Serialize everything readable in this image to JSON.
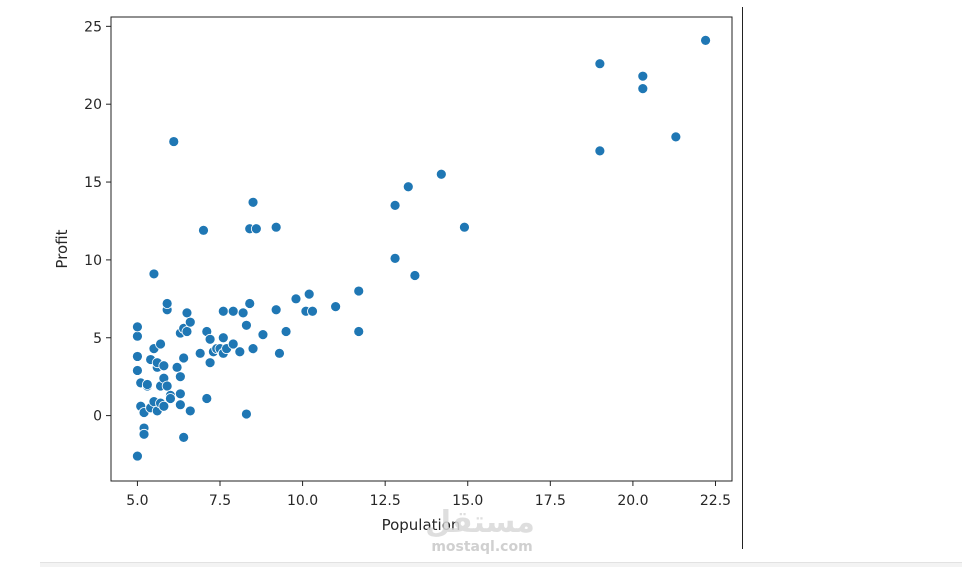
{
  "chart_data": {
    "type": "scatter",
    "title": "",
    "xlabel": "Population",
    "ylabel": "Profit",
    "xlim": [
      4.2,
      23.0
    ],
    "ylim": [
      -4.2,
      25.6
    ],
    "xticks": [
      5.0,
      7.5,
      10.0,
      12.5,
      15.0,
      17.5,
      20.0,
      22.5
    ],
    "xtick_labels": [
      "5.0",
      "7.5",
      "10.0",
      "12.5",
      "15.0",
      "17.5",
      "20.0",
      "22.5"
    ],
    "yticks": [
      0,
      5,
      10,
      15,
      20,
      25
    ],
    "ytick_labels": [
      "0",
      "5",
      "10",
      "15",
      "20",
      "25"
    ],
    "grid": false,
    "marker_color": "#1f77b4",
    "marker_edge": "#ffffff",
    "points": [
      [
        5.0,
        -2.6
      ],
      [
        5.0,
        2.9
      ],
      [
        5.0,
        3.8
      ],
      [
        5.0,
        5.1
      ],
      [
        5.0,
        5.7
      ],
      [
        5.1,
        0.6
      ],
      [
        5.1,
        2.1
      ],
      [
        5.2,
        -0.8
      ],
      [
        5.2,
        -1.2
      ],
      [
        5.2,
        0.2
      ],
      [
        5.3,
        1.9
      ],
      [
        5.3,
        2.0
      ],
      [
        5.4,
        0.5
      ],
      [
        5.4,
        3.6
      ],
      [
        5.5,
        0.9
      ],
      [
        5.5,
        4.3
      ],
      [
        5.5,
        9.1
      ],
      [
        5.6,
        0.3
      ],
      [
        5.6,
        3.1
      ],
      [
        5.6,
        3.4
      ],
      [
        5.7,
        4.6
      ],
      [
        5.7,
        0.8
      ],
      [
        5.7,
        1.9
      ],
      [
        5.8,
        2.4
      ],
      [
        5.8,
        3.2
      ],
      [
        5.8,
        0.6
      ],
      [
        5.9,
        6.8
      ],
      [
        5.9,
        7.2
      ],
      [
        5.9,
        1.9
      ],
      [
        6.0,
        1.3
      ],
      [
        6.0,
        1.1
      ],
      [
        6.1,
        17.6
      ],
      [
        6.2,
        3.1
      ],
      [
        6.3,
        2.5
      ],
      [
        6.3,
        0.7
      ],
      [
        6.3,
        1.4
      ],
      [
        6.3,
        5.3
      ],
      [
        6.4,
        5.6
      ],
      [
        6.4,
        -1.4
      ],
      [
        6.4,
        3.7
      ],
      [
        6.5,
        6.6
      ],
      [
        6.5,
        5.4
      ],
      [
        6.6,
        6.0
      ],
      [
        6.6,
        0.3
      ],
      [
        6.9,
        4.0
      ],
      [
        7.0,
        11.9
      ],
      [
        7.1,
        5.4
      ],
      [
        7.1,
        1.1
      ],
      [
        7.2,
        3.4
      ],
      [
        7.2,
        4.9
      ],
      [
        7.3,
        4.1
      ],
      [
        7.4,
        4.3
      ],
      [
        7.5,
        4.3
      ],
      [
        7.6,
        6.7
      ],
      [
        7.6,
        4.0
      ],
      [
        7.6,
        5.0
      ],
      [
        7.7,
        4.3
      ],
      [
        7.9,
        6.7
      ],
      [
        7.9,
        4.6
      ],
      [
        8.1,
        4.1
      ],
      [
        8.2,
        6.6
      ],
      [
        8.3,
        5.8
      ],
      [
        8.3,
        0.1
      ],
      [
        8.4,
        7.2
      ],
      [
        8.4,
        12.0
      ],
      [
        8.5,
        13.7
      ],
      [
        8.5,
        4.3
      ],
      [
        8.6,
        12.0
      ],
      [
        8.8,
        5.2
      ],
      [
        9.2,
        12.1
      ],
      [
        9.2,
        6.8
      ],
      [
        9.3,
        4.0
      ],
      [
        9.5,
        5.4
      ],
      [
        9.8,
        7.5
      ],
      [
        10.1,
        6.7
      ],
      [
        10.2,
        7.8
      ],
      [
        10.3,
        6.7
      ],
      [
        11.0,
        7.0
      ],
      [
        11.7,
        8.0
      ],
      [
        11.7,
        5.4
      ],
      [
        12.8,
        13.5
      ],
      [
        12.8,
        10.1
      ],
      [
        13.2,
        14.7
      ],
      [
        13.4,
        9.0
      ],
      [
        14.2,
        15.5
      ],
      [
        14.9,
        12.1
      ],
      [
        19.0,
        22.6
      ],
      [
        19.0,
        17.0
      ],
      [
        20.3,
        21.8
      ],
      [
        20.3,
        21.0
      ],
      [
        21.3,
        17.9
      ],
      [
        22.2,
        24.1
      ]
    ]
  },
  "watermark": {
    "arabic": "مستقل",
    "latin": "mostaql.com"
  }
}
